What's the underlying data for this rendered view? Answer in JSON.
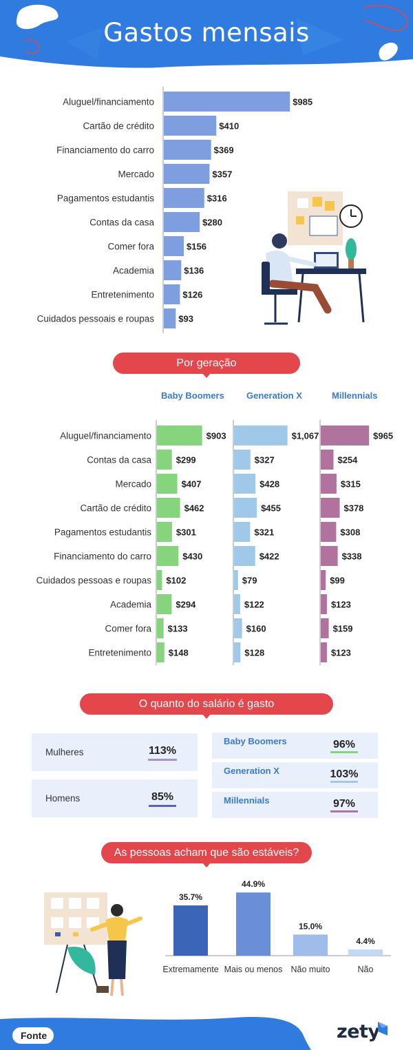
{
  "header": {
    "title": "Gastos mensais"
  },
  "colors": {
    "header_blue": "#2f7bdf",
    "pill_red": "#e3474b",
    "bar_blue": "#7f9ee0",
    "bar_green": "#86d47e",
    "bar_lightblue": "#9fc8e9",
    "bar_purple": "#b0739d"
  },
  "chart_data": [
    {
      "type": "bar",
      "orientation": "horizontal",
      "title": "Gastos mensais",
      "categories": [
        "Aluguel/financiamento",
        "Cartão de crédito",
        "Financiamento do carro",
        "Mercado",
        "Pagamentos estudantis",
        "Contas da casa",
        "Comer fora",
        "Academia",
        "Entretenimento",
        "Cuidados pessoais e roupas"
      ],
      "values": [
        985,
        410,
        369,
        357,
        316,
        280,
        156,
        136,
        126,
        93
      ],
      "value_labels": [
        "$985",
        "$410",
        "$369",
        "$357",
        "$316",
        "$280",
        "$156",
        "$136",
        "$126",
        "$93"
      ],
      "xlim": [
        0,
        1000
      ]
    },
    {
      "type": "bar",
      "orientation": "horizontal",
      "title": "Por geração",
      "categories": [
        "Aluguel/financiamento",
        "Contas da casa",
        "Mercado",
        "Cartão de crédito",
        "Pagamentos estudantis",
        "Financiamento do carro",
        "Cuidados pessoas e roupas",
        "Academia",
        "Comer fora",
        "Entretenimento"
      ],
      "series": [
        {
          "name": "Baby Boomers",
          "values": [
            903,
            299,
            407,
            462,
            301,
            430,
            102,
            294,
            133,
            148
          ],
          "value_labels": [
            "$903",
            "$299",
            "$407",
            "$462",
            "$301",
            "$430",
            "$102",
            "$294",
            "$133",
            "$148"
          ]
        },
        {
          "name": "Generation X",
          "values": [
            1067,
            327,
            428,
            455,
            321,
            422,
            79,
            122,
            160,
            128
          ],
          "value_labels": [
            "$1,067",
            "$327",
            "$428",
            "$455",
            "$321",
            "$422",
            "$79",
            "$122",
            "$160",
            "$128"
          ]
        },
        {
          "name": "Millennials",
          "values": [
            965,
            254,
            315,
            378,
            308,
            338,
            99,
            123,
            159,
            123
          ],
          "value_labels": [
            "$965",
            "$254",
            "$315",
            "$378",
            "$308",
            "$338",
            "$99",
            "$123",
            "$159",
            "$123"
          ]
        }
      ],
      "xlim": [
        0,
        1100
      ]
    },
    {
      "type": "bar",
      "title": "As pessoas acham que são estáveis?",
      "categories": [
        "Extremamente",
        "Mais ou menos",
        "Não muito",
        "Não"
      ],
      "values": [
        35.7,
        44.9,
        15.0,
        4.4
      ],
      "value_labels": [
        "35.7%",
        "44.9%",
        "15.0%",
        "4.4%"
      ],
      "ylim": [
        0,
        45
      ]
    }
  ],
  "sections": {
    "generation_title": "Por geração",
    "salary_title": "O quanto do salário é gasto",
    "stability_title": "As pessoas acham que são estáveis?"
  },
  "salary": {
    "gender": [
      {
        "label": "Mulheres",
        "value": "113%",
        "color": "#a98fd6"
      },
      {
        "label": "Homens",
        "value": "85%",
        "color": "#5a64b8"
      }
    ],
    "generation": [
      {
        "label": "Baby Boomers",
        "value": "96%",
        "color": "#86d47e"
      },
      {
        "label": "Generation X",
        "value": "103%",
        "color": "#9fc8e9"
      },
      {
        "label": "Millennials",
        "value": "97%",
        "color": "#b0739d"
      }
    ]
  },
  "footer": {
    "source_label": "Fonte",
    "brand": "zety"
  }
}
